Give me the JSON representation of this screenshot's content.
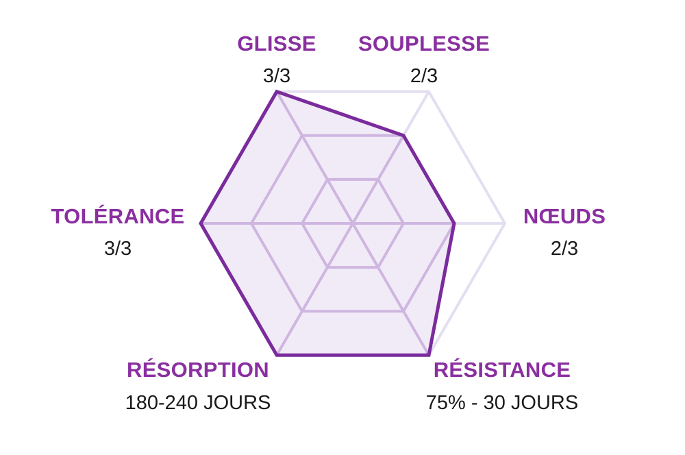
{
  "chart_data": {
    "type": "radar",
    "scale_max": 3,
    "levels": 3,
    "axes": [
      {
        "label": "GLISSE",
        "value_text": "3/3",
        "value": 3
      },
      {
        "label": "SOUPLESSE",
        "value_text": "2/3",
        "value": 2
      },
      {
        "label": "NŒUDS",
        "value_text": "2/3",
        "value": 2
      },
      {
        "label": "RÉSISTANCE",
        "value_text": "75% - 30 JOURS",
        "value": 3
      },
      {
        "label": "RÉSORPTION",
        "value_text": "180-240 JOURS",
        "value": 3
      },
      {
        "label": "TOLÉRANCE",
        "value_text": "3/3",
        "value": 3
      }
    ],
    "colors": {
      "label": "#8a2fa0",
      "outline": "#7a2b9c",
      "fill": "#f1ebf7",
      "inner_grid": "#cfb6e0",
      "outer_grid": "#e4dff0",
      "value_text": "#1a1a1a"
    }
  }
}
